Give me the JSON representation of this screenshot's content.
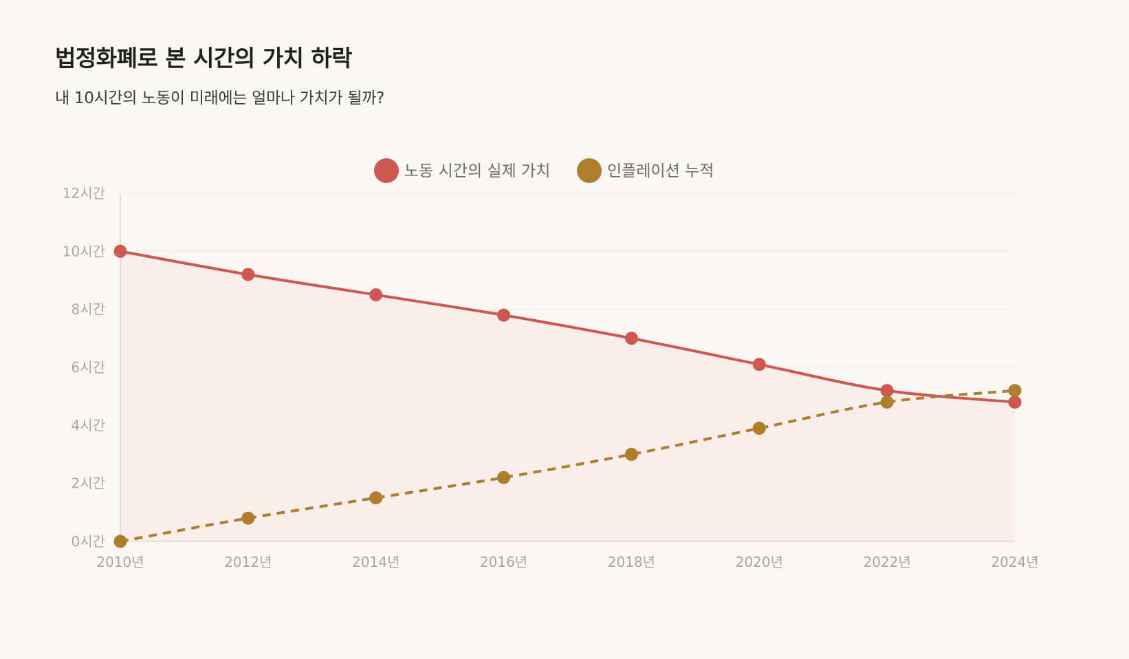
{
  "header": {
    "title": "법정화폐로 본 시간의 가치 하락",
    "subtitle": "내 10시간의 노동이 미래에는 얼마나 가치가 될까?"
  },
  "colors": {
    "real_value": "#cd5851",
    "real_value_fill": "#f9eeec",
    "inflation": "#b07c2e",
    "grid": "#efebe6",
    "axis": "#dcd7d2"
  },
  "chart_data": {
    "type": "line",
    "title": "법정화폐로 본 시간의 가치 하락",
    "subtitle": "내 10시간의 노동이 미래에는 얼마나 가치가 될까?",
    "xlabel": "",
    "ylabel": "",
    "categories": [
      "2010년",
      "2012년",
      "2014년",
      "2016년",
      "2018년",
      "2020년",
      "2022년",
      "2024년"
    ],
    "y_ticks": [
      0,
      2,
      4,
      6,
      8,
      10,
      12
    ],
    "y_tick_suffix": "시간",
    "ylim": [
      0,
      12
    ],
    "grid": true,
    "legend_position": "top-center",
    "series": [
      {
        "name": "노동 시간의 실제 가치",
        "values": [
          10,
          9.2,
          8.5,
          7.8,
          7.0,
          6.1,
          5.2,
          4.8
        ],
        "style": "solid",
        "fill": true
      },
      {
        "name": "인플레이션 누적",
        "values": [
          0,
          0.8,
          1.5,
          2.2,
          3.0,
          3.9,
          4.8,
          5.2
        ],
        "style": "dashed",
        "fill": false
      }
    ]
  }
}
